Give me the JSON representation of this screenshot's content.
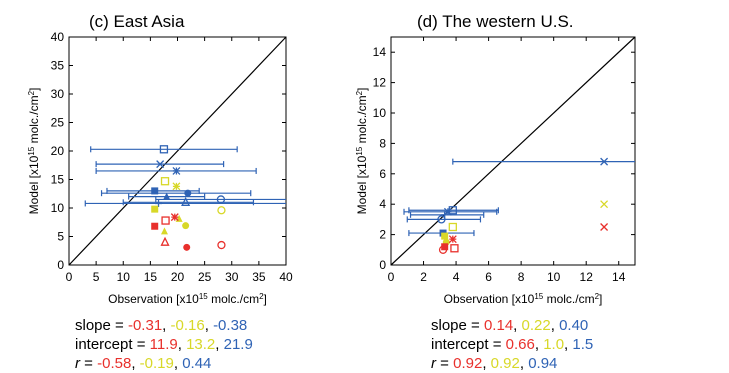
{
  "colors": {
    "red": "#e8302c",
    "yellow": "#d8d828",
    "blue": "#2f63b5"
  },
  "chart_data": [
    {
      "type": "scatter",
      "title": "(c) East Asia",
      "xlabel": "Observation",
      "ylabel": "Model",
      "units_prefix": "[x10",
      "units_exp": "15",
      "units_mid": " molc./cm",
      "units_sq": "2",
      "units_end": "]",
      "xlim": [
        0,
        40
      ],
      "ylim": [
        0,
        40
      ],
      "xticks": [
        0,
        5,
        10,
        15,
        20,
        25,
        30,
        35,
        40
      ],
      "yticks": [
        0,
        5,
        10,
        15,
        20,
        25,
        30,
        35,
        40
      ],
      "one_to_one_line": true,
      "points": [
        {
          "x": 17.5,
          "y": 20.3,
          "xerr": [
            4,
            31
          ],
          "color": "blue",
          "marker": "open-square"
        },
        {
          "x": 16.8,
          "y": 17.7,
          "xerr": [
            5,
            28.5
          ],
          "color": "blue",
          "marker": "cross"
        },
        {
          "x": 19.8,
          "y": 16.5,
          "xerr": [
            5,
            34.5
          ],
          "color": "blue",
          "marker": "asterisk"
        },
        {
          "x": 15.8,
          "y": 13.0,
          "xerr": [
            7,
            24
          ],
          "color": "blue",
          "marker": "filled-square"
        },
        {
          "x": 21.9,
          "y": 12.6,
          "xerr": [
            6,
            33.5
          ],
          "color": "blue",
          "marker": "filled-circle"
        },
        {
          "x": 18.0,
          "y": 12.0,
          "xerr": [
            11,
            25
          ],
          "color": "blue",
          "marker": "filled-triangle"
        },
        {
          "x": 21.5,
          "y": 11.0,
          "xerr": [
            10,
            34
          ],
          "color": "blue",
          "marker": "open-triangle"
        },
        {
          "x": 28.0,
          "y": 11.5,
          "xerr": [
            16,
            40
          ],
          "color": "blue",
          "marker": "open-circle"
        },
        {
          "x": 16.5,
          "y": 10.8,
          "xerr": [
            3,
            40
          ],
          "color": "blue",
          "marker": "plus"
        },
        {
          "x": 17.7,
          "y": 14.7,
          "color": "yellow",
          "marker": "open-square"
        },
        {
          "x": 19.8,
          "y": 13.8,
          "color": "yellow",
          "marker": "asterisk"
        },
        {
          "x": 15.8,
          "y": 9.8,
          "color": "yellow",
          "marker": "filled-square"
        },
        {
          "x": 20.3,
          "y": 8.1,
          "color": "yellow",
          "marker": "filled-triangle"
        },
        {
          "x": 21.5,
          "y": 6.9,
          "color": "yellow",
          "marker": "filled-circle"
        },
        {
          "x": 17.6,
          "y": 5.9,
          "color": "yellow",
          "marker": "filled-triangle"
        },
        {
          "x": 28.1,
          "y": 9.6,
          "color": "yellow",
          "marker": "open-circle"
        },
        {
          "x": 19.5,
          "y": 8.4,
          "color": "red",
          "marker": "asterisk"
        },
        {
          "x": 17.8,
          "y": 7.8,
          "color": "red",
          "marker": "open-square"
        },
        {
          "x": 15.8,
          "y": 6.8,
          "color": "red",
          "marker": "filled-square"
        },
        {
          "x": 17.7,
          "y": 4.0,
          "color": "red",
          "marker": "open-triangle"
        },
        {
          "x": 21.7,
          "y": 3.1,
          "color": "red",
          "marker": "filled-circle"
        },
        {
          "x": 28.1,
          "y": 3.5,
          "color": "red",
          "marker": "open-circle"
        }
      ]
    },
    {
      "type": "scatter",
      "title": "(d) The western U.S.",
      "xlabel": "Observation",
      "ylabel": "Model",
      "units_prefix": "[x10",
      "units_exp": "15",
      "units_mid": " molc./cm",
      "units_sq": "2",
      "units_end": "]",
      "xlim": [
        0,
        15
      ],
      "ylim": [
        0,
        15
      ],
      "xticks": [
        0,
        2,
        4,
        6,
        8,
        10,
        12,
        14
      ],
      "yticks": [
        0,
        2,
        4,
        6,
        8,
        10,
        12,
        14
      ],
      "one_to_one_line": true,
      "points": [
        {
          "x": 13.1,
          "y": 6.8,
          "xerr": [
            3.8,
            15
          ],
          "color": "blue",
          "marker": "cross"
        },
        {
          "x": 3.8,
          "y": 3.6,
          "xerr": [
            1.1,
            6.6
          ],
          "color": "blue",
          "marker": "open-square"
        },
        {
          "x": 3.5,
          "y": 3.5,
          "xerr": [
            0.8,
            6.5
          ],
          "color": "blue",
          "marker": "asterisk"
        },
        {
          "x": 3.3,
          "y": 3.3,
          "xerr": [
            1.2,
            5.7
          ],
          "color": "blue",
          "marker": "plus"
        },
        {
          "x": 3.1,
          "y": 3.0,
          "xerr": [
            1.0,
            5.5
          ],
          "color": "blue",
          "marker": "open-circle"
        },
        {
          "x": 3.2,
          "y": 2.1,
          "xerr": [
            1.1,
            5.1
          ],
          "color": "blue",
          "marker": "filled-square"
        },
        {
          "x": 13.1,
          "y": 4.0,
          "color": "yellow",
          "marker": "cross"
        },
        {
          "x": 3.8,
          "y": 2.5,
          "color": "yellow",
          "marker": "open-square"
        },
        {
          "x": 3.3,
          "y": 1.9,
          "color": "yellow",
          "marker": "filled-square"
        },
        {
          "x": 3.4,
          "y": 1.5,
          "color": "yellow",
          "marker": "filled-circle"
        },
        {
          "x": 13.1,
          "y": 2.5,
          "color": "red",
          "marker": "cross"
        },
        {
          "x": 3.8,
          "y": 1.7,
          "color": "red",
          "marker": "asterisk"
        },
        {
          "x": 3.3,
          "y": 1.2,
          "color": "red",
          "marker": "filled-square"
        },
        {
          "x": 3.2,
          "y": 1.0,
          "color": "red",
          "marker": "open-circle"
        },
        {
          "x": 3.9,
          "y": 1.1,
          "color": "red",
          "marker": "open-square"
        }
      ]
    }
  ],
  "stats": [
    {
      "slope_label": "slope = ",
      "slope": [
        "-0.31",
        "-0.16",
        "-0.38"
      ],
      "intercept_label": "intercept = ",
      "intercept": [
        "11.9",
        "13.2",
        "21.9"
      ],
      "r_label": "r",
      "r_eq": " = ",
      "r": [
        "-0.58",
        "-0.19",
        "0.44"
      ],
      "sep": ", "
    },
    {
      "slope_label": "slope = ",
      "slope": [
        "0.14",
        "0.22",
        "0.40"
      ],
      "intercept_label": "intercept = ",
      "intercept": [
        "0.66",
        "1.0",
        "1.5"
      ],
      "r_label": "r",
      "r_eq": " = ",
      "r": [
        "0.92",
        "0.92",
        "0.94"
      ],
      "sep": ", "
    }
  ]
}
